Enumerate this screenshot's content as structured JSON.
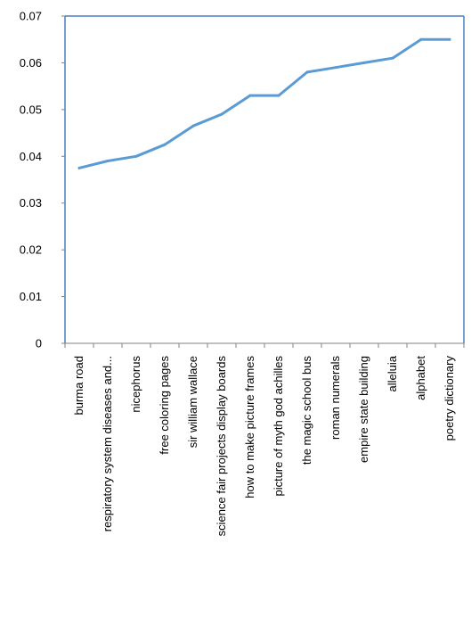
{
  "chart_data": {
    "type": "line",
    "title": "",
    "xlabel": "",
    "ylabel": "",
    "ylim": [
      0,
      0.07
    ],
    "yticks": [
      "0",
      "0.01",
      "0.02",
      "0.03",
      "0.04",
      "0.05",
      "0.06",
      "0.07"
    ],
    "categories": [
      "burma road",
      "respiratory system diseases and...",
      "nicephorus",
      "free coloring pages",
      "sir william wallace",
      "science fair projects display boards",
      "how to make picture frames",
      "picture of myth god achilles",
      "the magic school bus",
      "roman numerals",
      "empire state building",
      "alleluia",
      "alphabet",
      "poetry dictionary"
    ],
    "series": [
      {
        "values": [
          0.0375,
          0.039,
          0.04,
          0.0425,
          0.0465,
          0.049,
          0.053,
          0.053,
          0.058,
          0.059,
          0.06,
          0.061,
          0.065,
          0.065
        ],
        "color": "#5b9bd5"
      }
    ],
    "grid": false,
    "legend": "none",
    "frame_color": "#4a7fc1"
  }
}
